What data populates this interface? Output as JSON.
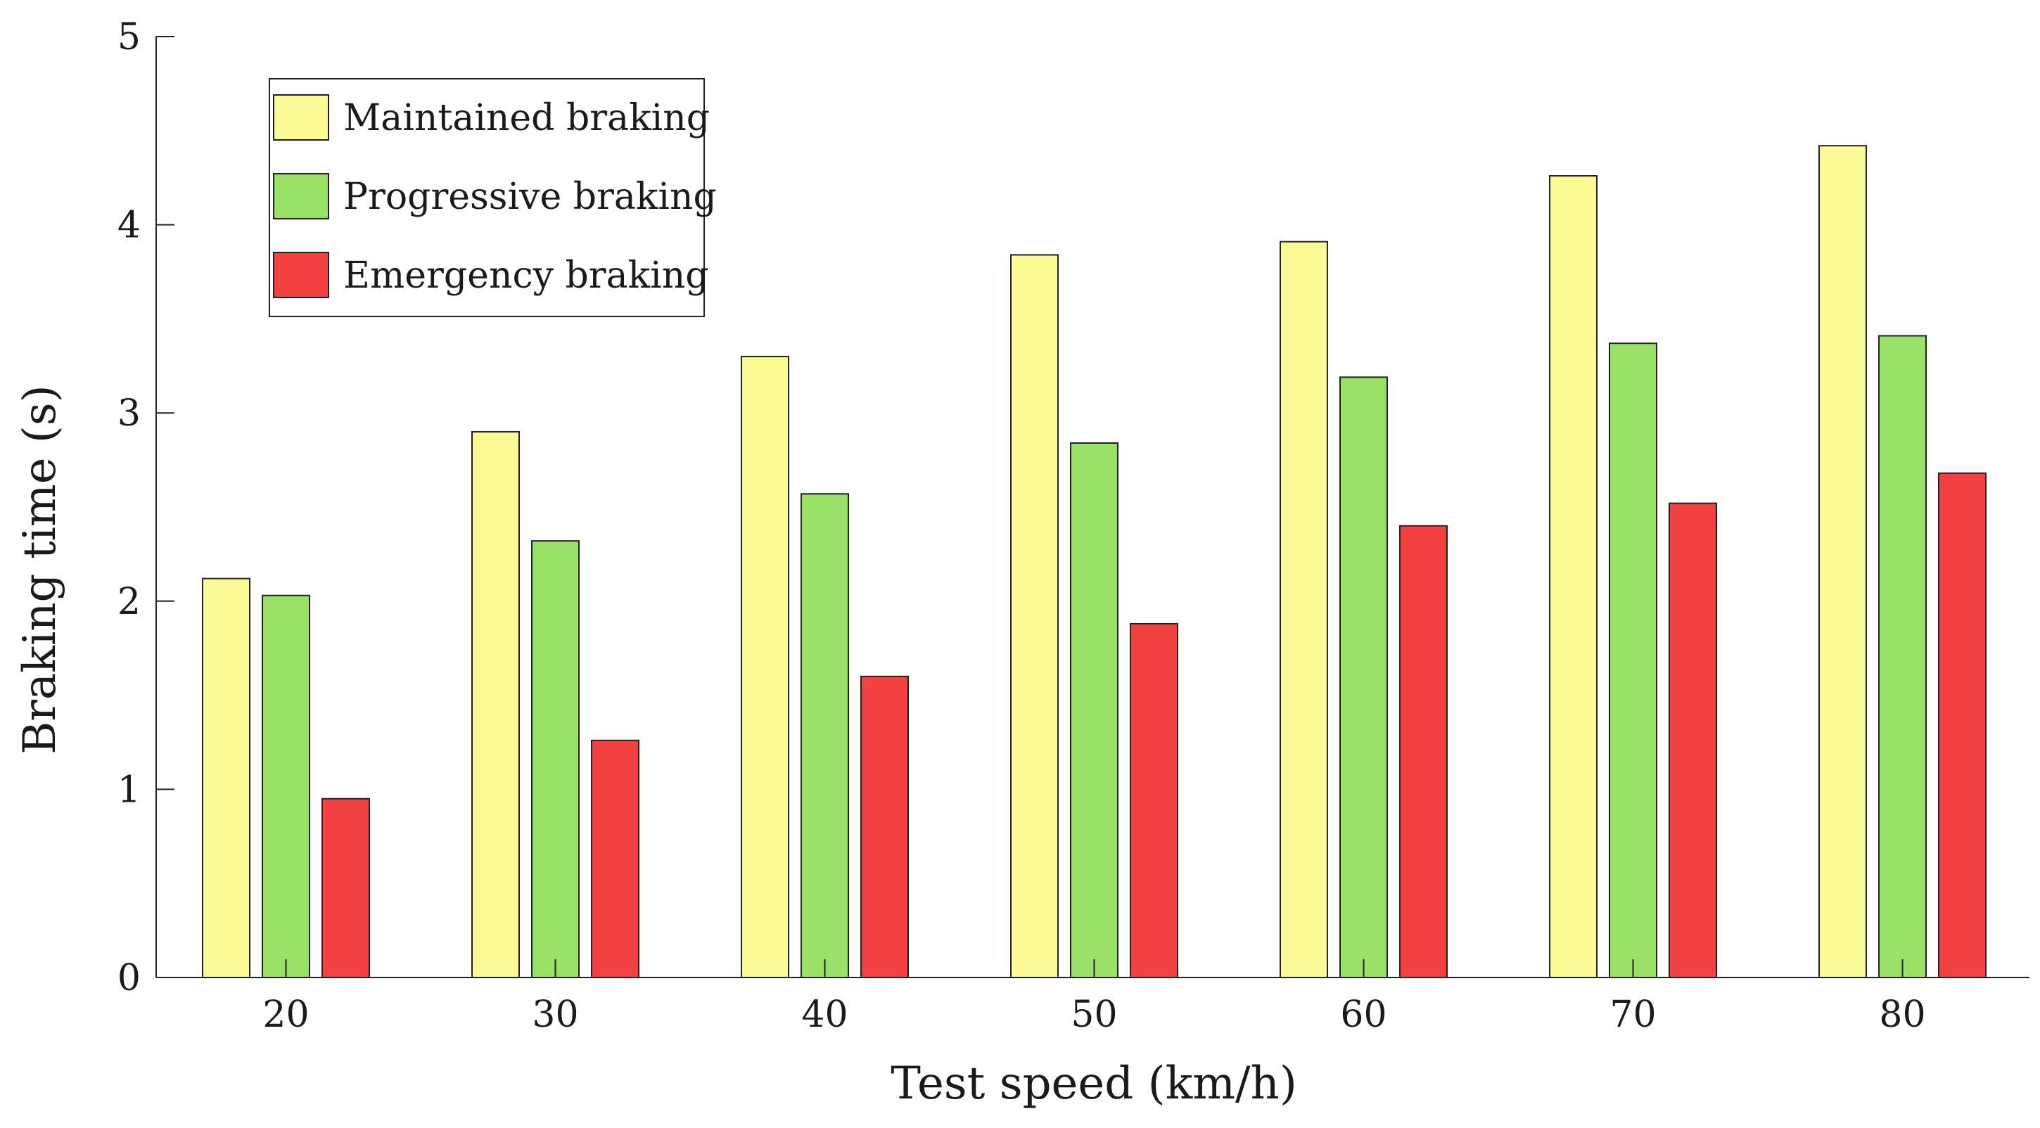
{
  "chart_data": {
    "type": "bar",
    "title": "",
    "xlabel": "Test speed (km/h)",
    "ylabel": "Braking time (s)",
    "ylim": [
      0,
      5
    ],
    "yticks": [
      0,
      1,
      2,
      3,
      4,
      5
    ],
    "categories": [
      "20",
      "30",
      "40",
      "50",
      "60",
      "70",
      "80"
    ],
    "legend_position": "top-left",
    "series": [
      {
        "name": "Maintained braking",
        "color": "#fafa96",
        "values": [
          2.12,
          2.9,
          3.3,
          3.84,
          3.91,
          4.26,
          4.42
        ]
      },
      {
        "name": "Progressive braking",
        "color": "#99e066",
        "values": [
          2.03,
          2.32,
          2.57,
          2.84,
          3.19,
          3.37,
          3.41
        ]
      },
      {
        "name": "Emergency braking",
        "color": "#f44242",
        "values": [
          0.95,
          1.26,
          1.6,
          1.88,
          2.4,
          2.52,
          2.68
        ]
      }
    ]
  }
}
